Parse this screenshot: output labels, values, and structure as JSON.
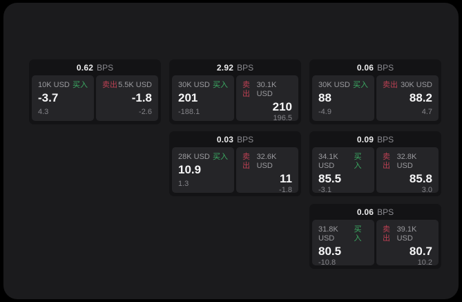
{
  "labels": {
    "bps_unit": "BPS",
    "buy": "买入",
    "sell": "卖出"
  },
  "colors": {
    "background": "#000000",
    "panel": "#1b1b1d",
    "card": "#131315",
    "tile": "#252528",
    "buy_accent": "#3cab63",
    "sell_accent": "#bc4053"
  },
  "cards": [
    {
      "bps": "0.62",
      "buy": {
        "size": "10K USD",
        "value": "-3.7",
        "sub": "4.3"
      },
      "sell": {
        "size": "5.5K USD",
        "value": "-1.8",
        "sub": "-2.6"
      }
    },
    {
      "bps": "2.92",
      "buy": {
        "size": "30K USD",
        "value": "201",
        "sub": "-188.1"
      },
      "sell": {
        "size": "30.1K USD",
        "value": "210",
        "sub": "196.5"
      }
    },
    {
      "bps": "0.06",
      "buy": {
        "size": "30K USD",
        "value": "88",
        "sub": "-4.9"
      },
      "sell": {
        "size": "30K USD",
        "value": "88.2",
        "sub": "4.7"
      }
    },
    {
      "bps": "0.03",
      "buy": {
        "size": "28K USD",
        "value": "10.9",
        "sub": "1.3"
      },
      "sell": {
        "size": "32.6K USD",
        "value": "11",
        "sub": "-1.8"
      }
    },
    {
      "bps": "0.09",
      "buy": {
        "size": "34.1K USD",
        "value": "85.5",
        "sub": "-3.1"
      },
      "sell": {
        "size": "32.8K USD",
        "value": "85.8",
        "sub": "3.0"
      }
    },
    {
      "bps": "0.06",
      "buy": {
        "size": "31.8K USD",
        "value": "80.5",
        "sub": "-10.8"
      },
      "sell": {
        "size": "39.1K USD",
        "value": "80.7",
        "sub": "10.2"
      }
    }
  ]
}
